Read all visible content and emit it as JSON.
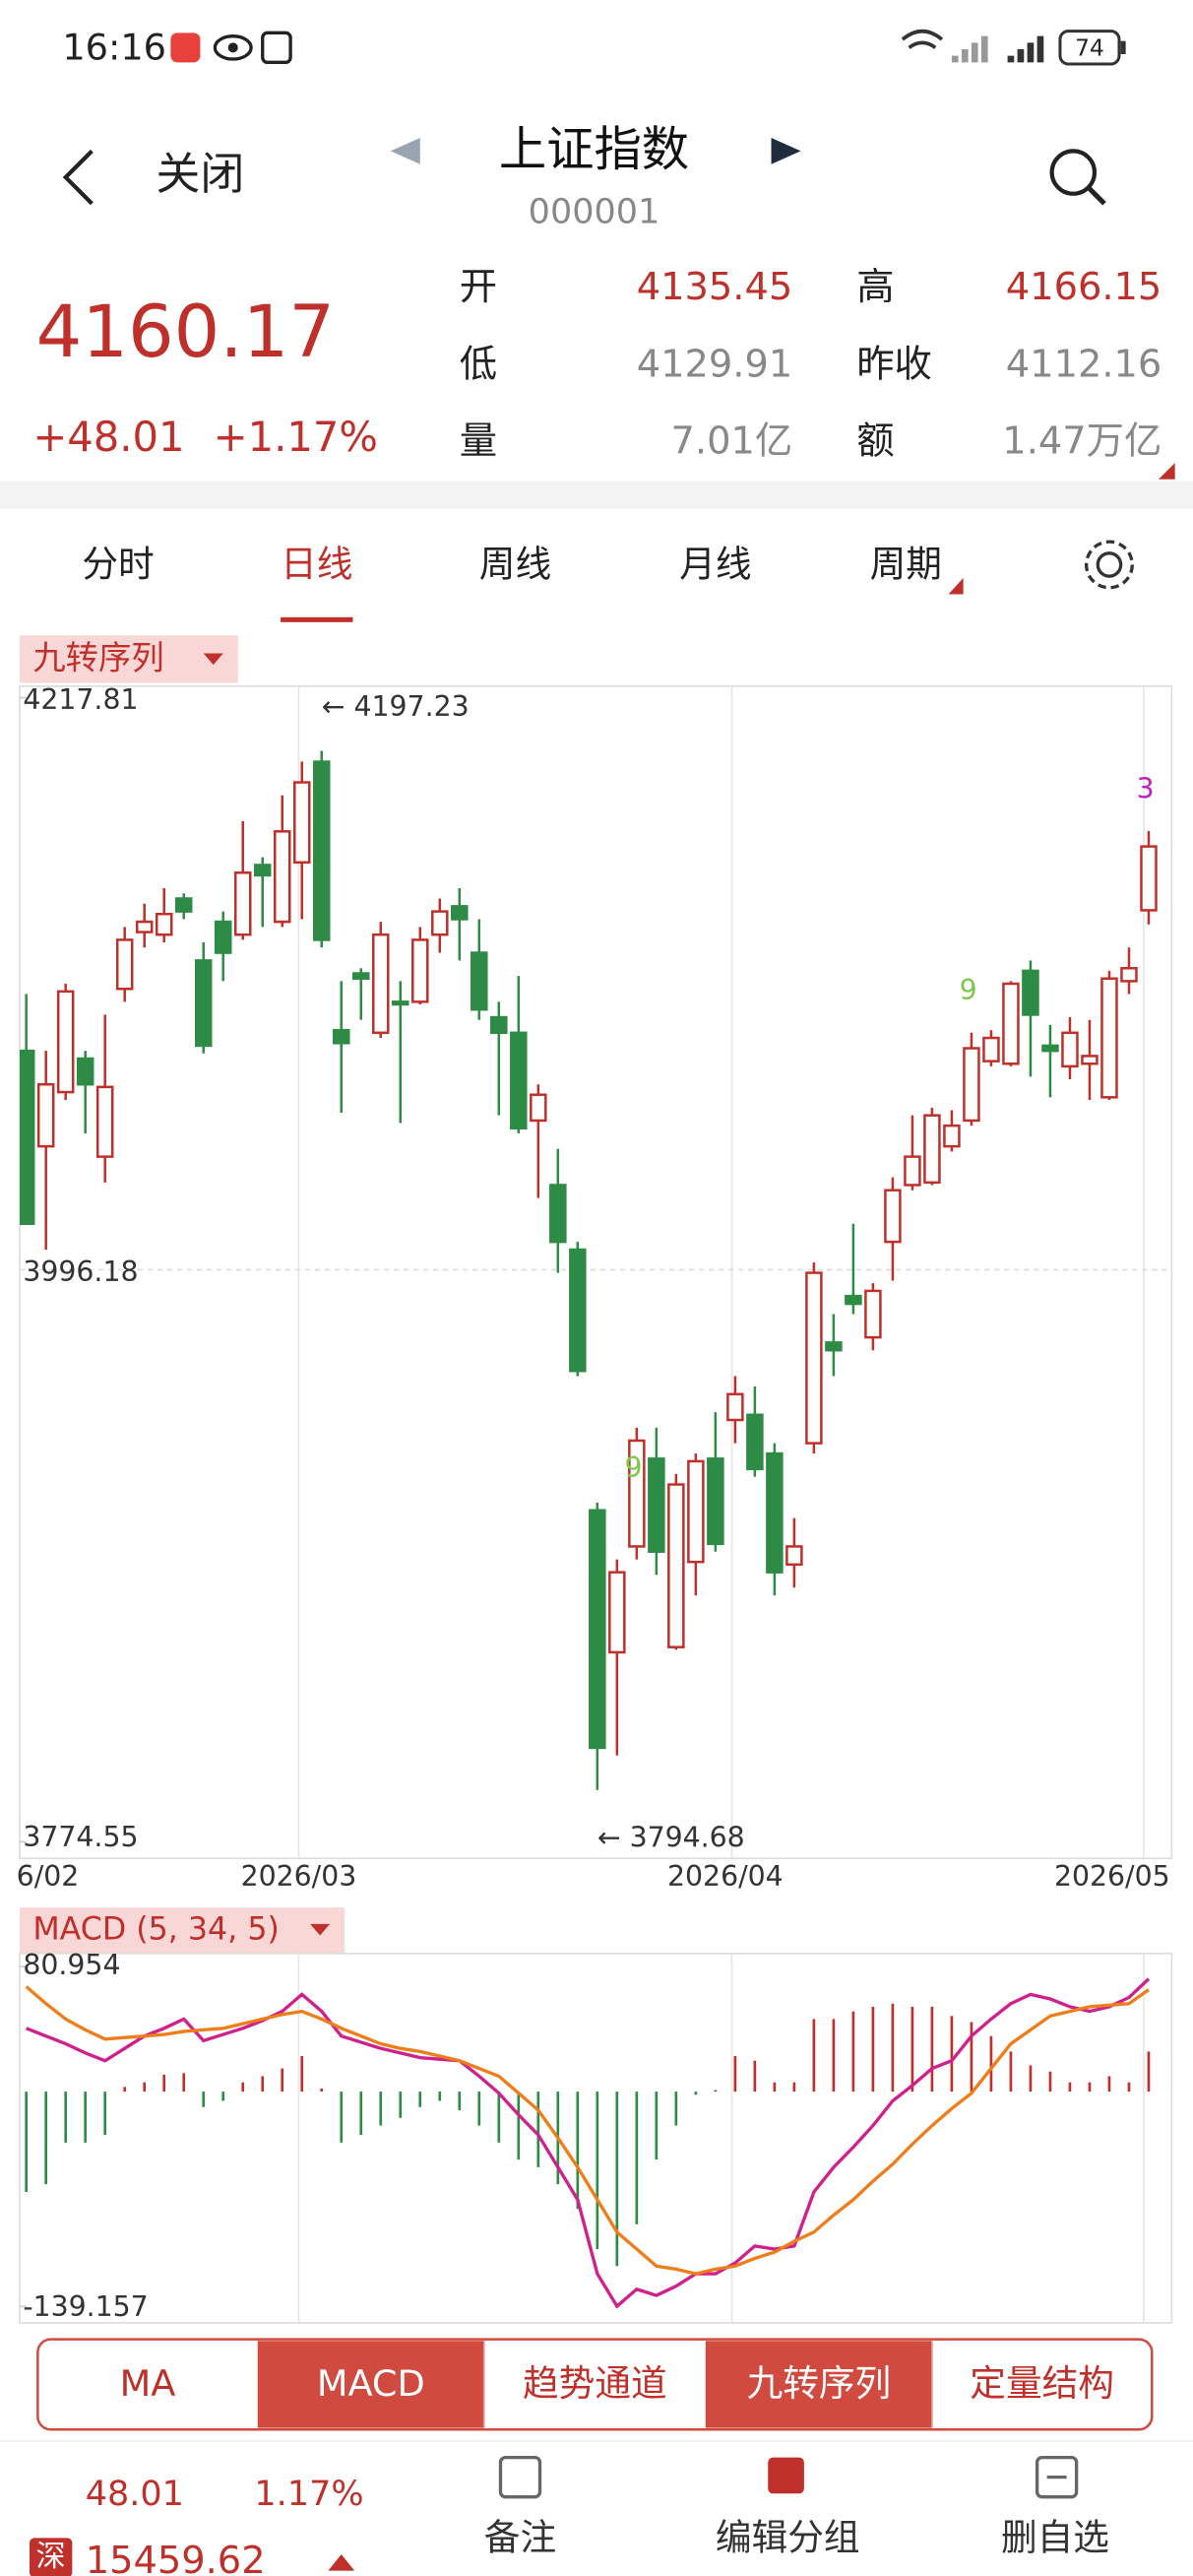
{
  "status_bar": {
    "time": "16:16",
    "battery": "74"
  },
  "header": {
    "close": "关闭",
    "title": "上证指数",
    "code": "000001"
  },
  "quote": {
    "price": "4160.17",
    "change": "+48.01",
    "change_pct": "+1.17%",
    "fields": [
      {
        "label": "开",
        "value": "4135.45",
        "color": "#c0302b"
      },
      {
        "label": "高",
        "value": "4166.15",
        "color": "#c0302b"
      },
      {
        "label": "低",
        "value": "4129.91",
        "color": "#888888"
      },
      {
        "label": "昨收",
        "value": "4112.16",
        "color": "#888888"
      },
      {
        "label": "量",
        "value": "7.01亿",
        "color": "#888888"
      },
      {
        "label": "额",
        "value": "1.47万亿",
        "color": "#888888"
      }
    ]
  },
  "tabs": {
    "items": [
      "分时",
      "日线",
      "周线",
      "月线",
      "周期"
    ],
    "active": 1
  },
  "chart_data": [
    {
      "type": "candlestick",
      "title": "九转序列",
      "ylim": [
        3774.55,
        4217.81
      ],
      "yticks": [
        3774.55,
        3996.18,
        4217.81
      ],
      "up_color": "#c0302b",
      "down_color": "#2e8b45",
      "xtick_labels": [
        "6/02",
        "2026/03",
        "2026/04",
        "2026/05"
      ],
      "extreme_labels": [
        {
          "text": "← 4197.23",
          "candle": 15,
          "value": 4197.23
        },
        {
          "text": "← 3794.68",
          "candle": 29,
          "value": 3794.68
        }
      ],
      "annotations": [
        {
          "text": "9",
          "candle": 31,
          "position": "below",
          "color": "#7cc84a"
        },
        {
          "text": "9",
          "candle": 48,
          "position": "above",
          "color": "#7cc84a"
        },
        {
          "text": "3",
          "candle": 57,
          "position": "above",
          "color": "#c21fc2"
        }
      ],
      "open": [
        4081,
        4044,
        4065,
        4078,
        4040,
        4105,
        4127,
        4126,
        4140,
        4116,
        4131,
        4126,
        4153,
        4131,
        4154,
        4193,
        4089,
        4111,
        4088,
        4100,
        4100,
        4126,
        4137,
        4119,
        4094,
        4088,
        4054,
        4029,
        4004,
        3903,
        3848,
        3889,
        3923,
        3850,
        3883,
        3923,
        3938,
        3940,
        3925,
        3882,
        3929,
        3968,
        3986,
        3970,
        4007,
        4029,
        4030,
        4044,
        4054,
        4077,
        4076,
        4112,
        4083,
        4075,
        4076,
        4063,
        4108,
        4135.45
      ],
      "close": [
        4014,
        4068,
        4104,
        4068,
        4067,
        4124,
        4131,
        4134,
        4135,
        4083,
        4119,
        4150,
        4149,
        4166,
        4185,
        4124,
        4084,
        4109,
        4126,
        4099,
        4124,
        4135,
        4132,
        4097,
        4088,
        4051,
        4064,
        4007,
        3957,
        3811,
        3879,
        3930,
        3887,
        3913,
        3922,
        3890,
        3948,
        3919,
        3879,
        3889,
        3995,
        3965,
        3983,
        3988,
        4027,
        4040,
        4056,
        4052,
        4082,
        4086,
        4107,
        4095,
        4081,
        4088,
        4079,
        4109,
        4113,
        4160.17
      ],
      "high": [
        4103,
        4081,
        4107,
        4081,
        4095,
        4129,
        4138,
        4144,
        4142,
        4123,
        4135,
        4170,
        4156,
        4180,
        4193,
        4197.23,
        4108,
        4113,
        4131,
        4108,
        4129,
        4140,
        4144,
        4132,
        4100,
        4110,
        4068,
        4043,
        4007,
        3906,
        3884,
        3935,
        3935,
        3917,
        3925,
        3941,
        3955,
        3951,
        3929,
        3900,
        3999,
        3979,
        4014,
        3991,
        4032,
        4056,
        4059,
        4058,
        4088,
        4089,
        4108,
        4116,
        4091,
        4094,
        4093,
        4112,
        4121,
        4166.15
      ],
      "low": [
        4014,
        4004,
        4062,
        4049,
        4030,
        4100,
        4121,
        4123,
        4132,
        4080,
        4108,
        4124,
        4129,
        4129,
        4132,
        4121,
        4057,
        4093,
        4086,
        4053,
        4099,
        4119,
        4116,
        4093,
        4056,
        4049,
        4024,
        3995,
        3955,
        3794.68,
        3808,
        3884,
        3878,
        3849,
        3870,
        3887,
        3929,
        3916,
        3870,
        3873,
        3925,
        3955,
        3979,
        3965,
        3992,
        4027,
        4029,
        4042,
        4052,
        4075,
        4075,
        4071,
        4063,
        4070,
        4062,
        4062,
        4103,
        4129.91
      ]
    },
    {
      "type": "macd",
      "title": "MACD (5, 34, 5)",
      "ylim": [
        -139.157,
        80.954
      ],
      "yticks": [
        -139.157,
        80.954
      ],
      "histogram": {
        "up_color": "#c0302b",
        "down_color": "#2e8b45",
        "values": [
          -65,
          -60,
          -33,
          -33,
          -28,
          3,
          6,
          11,
          12,
          -10,
          -6,
          6,
          10,
          15,
          23,
          2,
          -33,
          -28,
          -22,
          -17,
          -10,
          -6,
          -12,
          -22,
          -33,
          -44,
          -49,
          -60,
          -76,
          -102,
          -113,
          -86,
          -44,
          -22,
          -2,
          1,
          23,
          20,
          6,
          6,
          47,
          47,
          52,
          55,
          57,
          55,
          55,
          49,
          45,
          36,
          26,
          17,
          13,
          6,
          6,
          10,
          6,
          26
        ]
      },
      "series": [
        {
          "color": "#d0208c",
          "values": [
            41,
            36,
            31,
            25,
            20,
            28,
            36,
            41,
            47,
            33,
            37,
            41,
            46,
            52,
            63,
            52,
            36,
            32,
            28,
            25,
            22,
            21,
            20,
            10,
            -1,
            -15,
            -28,
            -49,
            -70,
            -118,
            -139,
            -128,
            -132,
            -126,
            -118,
            -118,
            -111,
            -100,
            -102,
            -100,
            -65,
            -49,
            -36,
            -22,
            -6,
            4,
            15,
            20,
            36,
            47,
            57,
            63,
            60,
            55,
            52,
            55,
            61,
            73
          ]
        },
        {
          "color": "#ee7d1a",
          "values": [
            68,
            57,
            47,
            40,
            34,
            35,
            36,
            37,
            39,
            40,
            41,
            44,
            47,
            50,
            52,
            47,
            41,
            36,
            31,
            28,
            26,
            23,
            20,
            15,
            10,
            -1,
            -12,
            -30,
            -49,
            -70,
            -91,
            -102,
            -113,
            -115,
            -118,
            -115,
            -113,
            -108,
            -104,
            -97,
            -91,
            -80,
            -70,
            -58,
            -47,
            -34,
            -22,
            -11,
            -1,
            15,
            31,
            40,
            49,
            52,
            55,
            56,
            57,
            66
          ]
        }
      ]
    }
  ],
  "indicator_tabs": {
    "items": [
      "MA",
      "MACD",
      "趋势通道",
      "九转序列",
      "定量结构"
    ],
    "selected": [
      1,
      3
    ]
  },
  "bottom": {
    "change": "48.01",
    "change_pct": "1.17%",
    "index_badge": "深",
    "index_value": "15459.62",
    "actions": [
      "备注",
      "编辑分组",
      "删自选"
    ]
  }
}
